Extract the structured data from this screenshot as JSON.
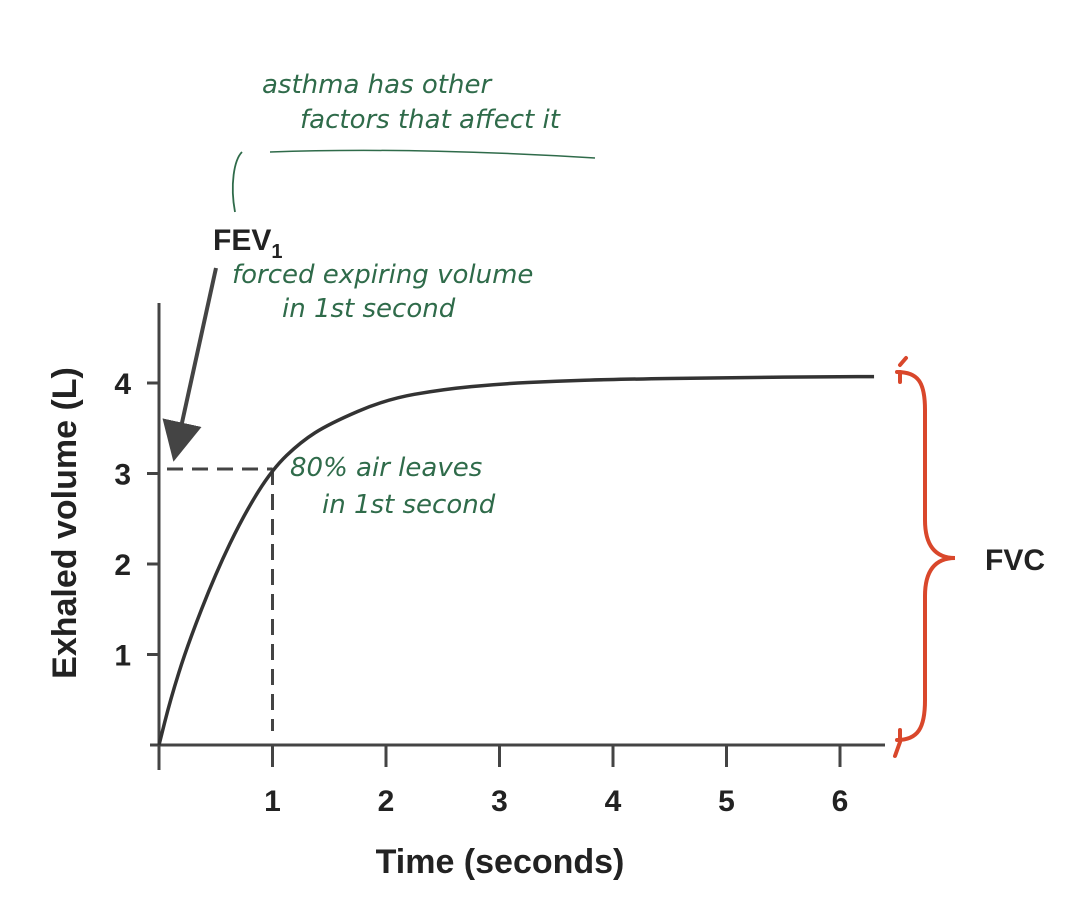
{
  "chart_data": {
    "type": "line",
    "xlabel": "Time (seconds)",
    "ylabel": "Exhaled volume (L)",
    "xlim": [
      0,
      6.3
    ],
    "ylim": [
      0,
      4.2
    ],
    "x_ticks": [
      "1",
      "2",
      "3",
      "4",
      "5",
      "6"
    ],
    "y_ticks": [
      "1",
      "2",
      "3",
      "4"
    ],
    "series": [
      {
        "x": [
          0,
          0.1,
          0.25,
          0.5,
          0.75,
          1.0,
          1.25,
          1.5,
          2.0,
          2.5,
          3.0,
          3.5,
          4.0,
          5.0,
          6.0,
          6.3
        ],
        "y": [
          0,
          0.5,
          1.1,
          1.9,
          2.55,
          3.05,
          3.35,
          3.55,
          3.82,
          3.93,
          3.99,
          4.02,
          4.04,
          4.06,
          4.07,
          4.07
        ]
      }
    ],
    "fev1_point": {
      "x": 1,
      "y": 3.05
    },
    "fvc_range": [
      0,
      4.07
    ],
    "colors": {
      "curve": "#333333",
      "bracket": "#d9472b",
      "handwriting": "#2f6b4a"
    }
  },
  "labels": {
    "fev_main": "FEV",
    "fev_sub": "1",
    "fvc": "FVC"
  },
  "handwriting": {
    "note_line1": "asthma has other",
    "note_line2": "factors that affect it",
    "fev_line1": "forced expiring volume",
    "fev_line2": "in 1st second",
    "pct_line1": "80% air leaves",
    "pct_line2": "in 1st second"
  }
}
